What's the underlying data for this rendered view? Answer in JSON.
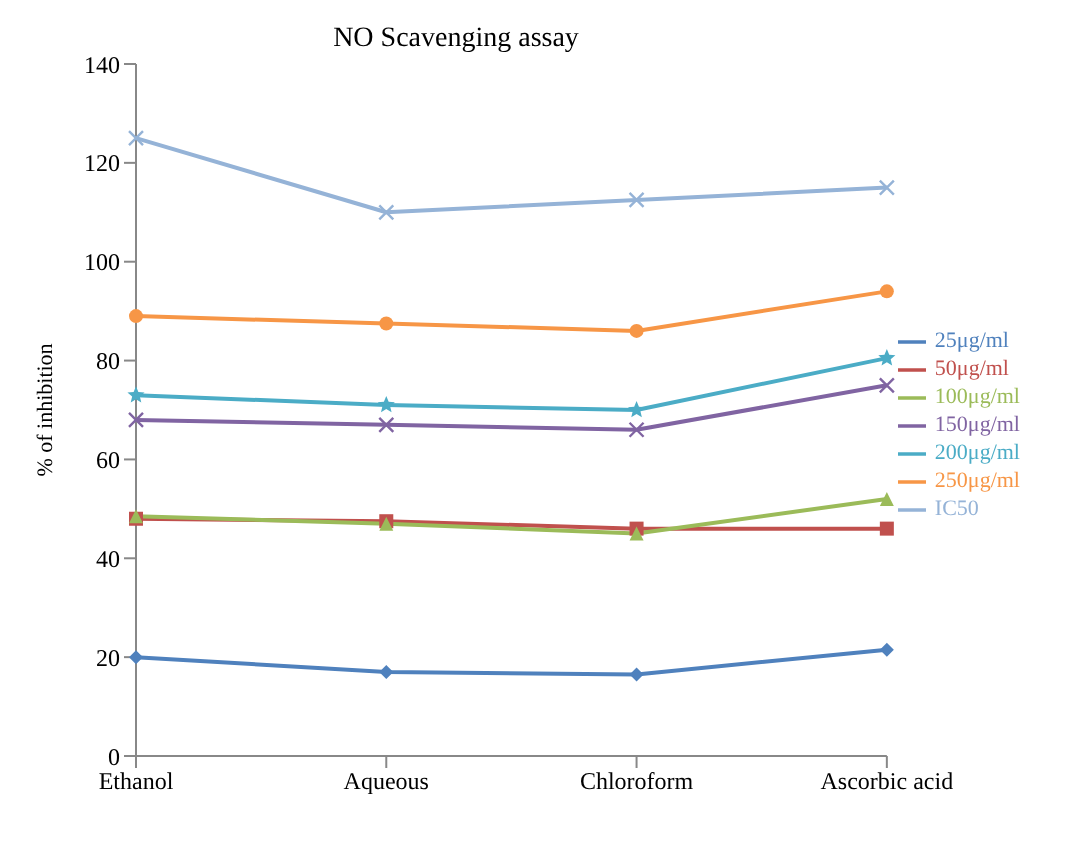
{
  "chart_data": {
    "type": "line",
    "title": "NO Scavenging assay",
    "ylabel": "% of inhibition",
    "categories": [
      "Ethanol",
      "Aqueous",
      "Chloroform",
      "Ascorbic acid"
    ],
    "series": [
      {
        "name": "25μg/ml",
        "color": "#4f81bd",
        "marker": "diamond",
        "values": [
          20,
          17,
          16.5,
          21.5
        ]
      },
      {
        "name": "50μg/ml",
        "color": "#c0504d",
        "marker": "square",
        "values": [
          48,
          47.5,
          46,
          46
        ]
      },
      {
        "name": "100μg/ml",
        "color": "#9bbb59",
        "marker": "triangle",
        "values": [
          48.5,
          47,
          45,
          52
        ]
      },
      {
        "name": "150μg/ml",
        "color": "#8064a2",
        "marker": "cross",
        "values": [
          68,
          67,
          66,
          75
        ]
      },
      {
        "name": "200μg/ml",
        "color": "#4bacc6",
        "marker": "star",
        "values": [
          73,
          71,
          70,
          80.5
        ]
      },
      {
        "name": "250μg/ml",
        "color": "#f79646",
        "marker": "circle",
        "values": [
          89,
          87.5,
          86,
          94
        ]
      },
      {
        "name": "IC50",
        "color": "#95b3d7",
        "marker": "cross",
        "values": [
          125,
          110,
          112.5,
          115
        ]
      }
    ],
    "ylim": [
      0,
      140
    ],
    "yticks": [
      0,
      20,
      40,
      60,
      80,
      100,
      120,
      140
    ],
    "grid": false,
    "legend": "right"
  }
}
